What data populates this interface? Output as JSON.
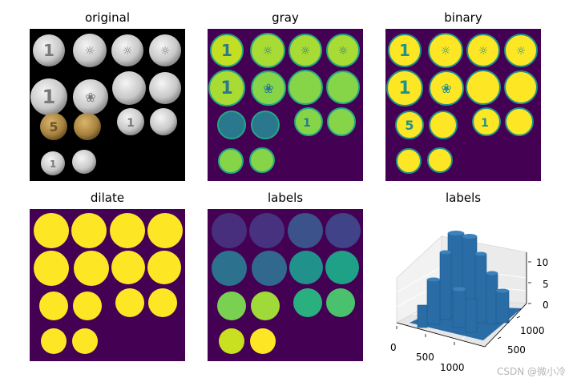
{
  "titles": [
    "original",
    "gray",
    "binary",
    "dilate",
    "labels",
    "labels"
  ],
  "colors": {
    "background_dark": "#440154",
    "coin_yellow": "#fde725",
    "coin_black_bg": "#000000",
    "silver": "#d9d9d9",
    "bronze": "#b08a4a",
    "surface_blue": "#2a6ca6"
  },
  "label_colors": [
    "#472f7d",
    "#46327e",
    "#3b528b",
    "#404387",
    "#2c728e",
    "#31688e",
    "#21918c",
    "#1fa187",
    "#7ad151",
    "#a0da39",
    "#2ab07f",
    "#4ac16d",
    "#c8e020",
    "#fde725"
  ],
  "axes3d": {
    "z_ticks": [
      "10",
      "5",
      "0"
    ],
    "x_ticks": [
      "0",
      "500",
      "1000"
    ],
    "y_ticks": [
      "500",
      "1000"
    ]
  },
  "watermark": "CSDN @微小冷"
}
